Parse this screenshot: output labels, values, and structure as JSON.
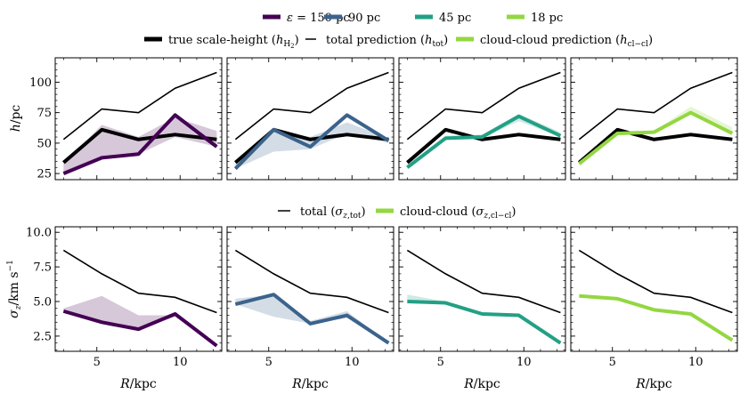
{
  "colors": {
    "eps150": "#440154",
    "eps90": "#3b638c",
    "eps45": "#22a085",
    "eps18": "#93d741",
    "black": "#000000"
  },
  "legend_eps": [
    {
      "label": "ε = 150 pc",
      "color": "#440154"
    },
    {
      "label": "90 pc",
      "color": "#3b638c"
    },
    {
      "label": "45 pc",
      "color": "#22a085"
    },
    {
      "label": "18 pc",
      "color": "#93d741"
    }
  ],
  "legend_h": [
    {
      "label": "true scale-height (h_H2)",
      "style": "thick-black"
    },
    {
      "label": "total prediction (h_tot)",
      "style": "thin-black"
    },
    {
      "label": "cloud-cloud prediction (h_cl−cl)",
      "style": "thick-green"
    }
  ],
  "legend_sigma": [
    {
      "label": "total (σ_z,tot)",
      "style": "thin-black"
    },
    {
      "label": "cloud-cloud (σ_z,cl−cl)",
      "style": "thick-green"
    }
  ],
  "chart_data": [
    {
      "type": "line",
      "row": "top",
      "ylabel": "h/pc",
      "xlabel": "",
      "xlim": [
        2.5,
        12.5
      ],
      "ylim": [
        20,
        120
      ],
      "xticks": [
        5,
        10
      ],
      "yticks": [
        25,
        50,
        75,
        100
      ],
      "x": [
        3.0,
        5.3,
        7.5,
        9.7,
        12.2
      ],
      "true_scale_height": [
        34,
        61,
        53,
        57,
        53
      ],
      "total_prediction": [
        53,
        78,
        75,
        95,
        108
      ],
      "panels": [
        {
          "eps": "150 pc",
          "values": [
            25,
            38,
            41,
            73,
            47
          ],
          "band_upper": [
            33,
            65,
            55,
            71,
            60
          ],
          "band_lower": [
            25,
            38,
            41,
            55,
            47
          ]
        },
        {
          "eps": "90 pc",
          "values": [
            29,
            61,
            47,
            73,
            52
          ],
          "band_upper": [
            33,
            61,
            55,
            67,
            54
          ],
          "band_lower": [
            29,
            43,
            45,
            58,
            50
          ]
        },
        {
          "eps": "45 pc",
          "values": [
            30,
            54,
            55,
            72,
            56
          ],
          "band_upper": [
            32,
            56,
            57,
            74,
            59
          ],
          "band_lower": [
            30,
            54,
            54,
            68,
            55
          ]
        },
        {
          "eps": "18 pc",
          "values": [
            33,
            58,
            59,
            75,
            58
          ],
          "band_upper": [
            35,
            59,
            60,
            80,
            63
          ],
          "band_lower": [
            33,
            58,
            58,
            74,
            58
          ]
        }
      ]
    },
    {
      "type": "line",
      "row": "bottom",
      "ylabel": "σ_z/km s^−1",
      "xlabel": "R/kpc",
      "xlim": [
        2.5,
        12.5
      ],
      "ylim": [
        1.4,
        10.4
      ],
      "xticks": [
        5,
        10
      ],
      "yticks": [
        2.5,
        5.0,
        7.5,
        10.0
      ],
      "x": [
        3.0,
        5.3,
        7.5,
        9.7,
        12.2
      ],
      "total": [
        8.7,
        7.0,
        5.6,
        5.3,
        4.2
      ],
      "panels": [
        {
          "eps": "150 pc",
          "values": [
            4.3,
            3.5,
            3.0,
            4.1,
            1.8
          ],
          "band_upper": [
            4.5,
            5.4,
            4.0,
            4.0,
            1.8
          ],
          "band_lower": [
            4.3,
            3.5,
            3.0,
            3.9,
            1.8
          ]
        },
        {
          "eps": "90 pc",
          "values": [
            4.8,
            5.5,
            3.4,
            4.0,
            2.0
          ],
          "band_upper": [
            5.2,
            5.5,
            3.6,
            4.3,
            2.0
          ],
          "band_lower": [
            4.8,
            3.9,
            3.4,
            3.8,
            2.0
          ]
        },
        {
          "eps": "45 pc",
          "values": [
            5.0,
            4.9,
            4.1,
            4.0,
            2.0
          ],
          "band_upper": [
            5.5,
            5.0,
            4.2,
            4.1,
            2.0
          ],
          "band_lower": [
            5.0,
            4.9,
            4.1,
            4.0,
            2.0
          ]
        },
        {
          "eps": "18 pc",
          "values": [
            5.4,
            5.2,
            4.4,
            4.1,
            2.2
          ],
          "band_upper": [
            5.5,
            5.3,
            4.5,
            4.2,
            2.2
          ],
          "band_lower": [
            5.4,
            5.2,
            4.4,
            4.1,
            2.2
          ]
        }
      ]
    }
  ]
}
